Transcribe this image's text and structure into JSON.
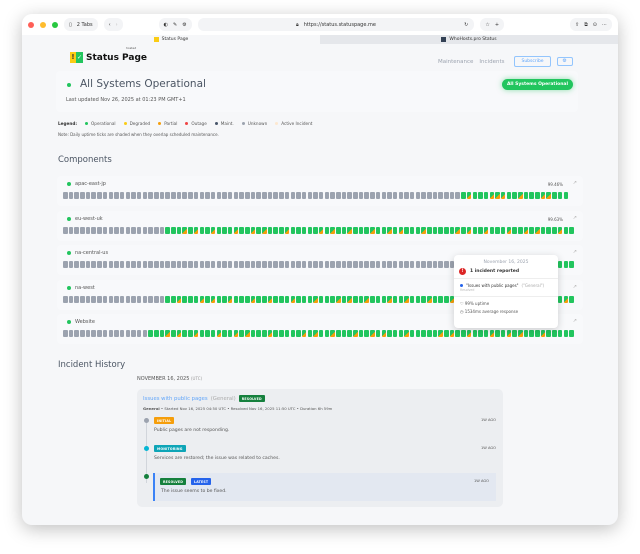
{
  "browser": {
    "tab_count": "2 Tabs",
    "url": "https://status.statuspage.me",
    "tabs": [
      {
        "label": "Status Page"
      },
      {
        "label": "WhoHosts.pro Status"
      }
    ]
  },
  "header": {
    "logo_text": "Status Page",
    "logo_sup": "hosted",
    "nav": [
      "Maintenance",
      "Incidents"
    ],
    "subscribe": "Subscribe",
    "gear": "⚙"
  },
  "summary": {
    "title": "All Systems Operational",
    "updated": "Last updated Nov 26, 2025 at 01:23 PM GMT+1",
    "badge": "All Systems Operational"
  },
  "legend": {
    "label": "Legend:",
    "items": [
      {
        "label": "Operational",
        "color": "#22c55e"
      },
      {
        "label": "Degraded",
        "color": "#facc15"
      },
      {
        "label": "Partial",
        "color": "#f59e0b"
      },
      {
        "label": "Outage",
        "color": "#ef4444"
      },
      {
        "label": "Maint.",
        "color": "#475569"
      },
      {
        "label": "Unknown",
        "color": "#9ca3af"
      },
      {
        "label": "Active Incident",
        "color": "#fde8d0"
      }
    ],
    "note": "Note: Daily uptime ticks are shaded when they overlap scheduled maintenance."
  },
  "components": {
    "title": "Components",
    "items": [
      {
        "name": "apac-east-jp",
        "uptime": "99.46%",
        "ticks": "uuuuuuuuuuuuuuuuuuuuuuuuuuuuuuuuuuuuuuuuuuuuuuuuuuuuuuuuuuuuuuuuuuuuuugpgggpppggpgggppggg"
      },
      {
        "name": "eu-west-uk",
        "uptime": "99.63%",
        "ticks": "uuuuuuuuuuuuuuuuuugggpgpggpgggpggpgpgggpgggggpgpggpgggpggpgpgggpgggggpgpggpgggpggpgpgggpgg"
      },
      {
        "name": "na-central-us",
        "uptime": "",
        "ticks": "uuuuuuuuuuuuuuuuuuuuuuuuuuuuuuuuuuuuuuuuuuuuuuuuuuuuuuuuuuuuuuuuuuuuuuuuuuuuuuuuuuuuuuuggg"
      },
      {
        "name": "na-west",
        "uptime": "",
        "ticks": "uuuuuuuuuuuuuuuuuuggpgggpgpggpgggpggpgggpgggpgggpgpggpgggpggpgggpgggpgggpgpggpgggpggpgggpg"
      },
      {
        "name": "Website",
        "uptime": "",
        "ticks": "uuuuuuuuuuuuuuugggpgpggpgggpggpgpgggpgggggpgpggpgggpggpgpgggpgggggpgpggpgggpggpgpgggpggggg"
      }
    ]
  },
  "tooltip": {
    "date": "November 16, 2025",
    "incidents": "1 incident reported",
    "incident_title": "\"Issues with public pages\"",
    "incident_group": "(\"General\")",
    "incident_status": "Resolved",
    "uptime": "99% uptime",
    "response": "1534ms average response"
  },
  "history": {
    "title": "Incident History",
    "date": "NOVEMBER 16, 2025",
    "tz": "(UTC)",
    "incident": {
      "title": "Issues with public pages",
      "group": "(General)",
      "badge": "RESOLVED",
      "meta_group": "General",
      "meta": " • Started Nov 16, 2025 04:50 UTC • Resolved Nov 16, 2025 11:50 UTC • Duration 6h 59m",
      "updates": [
        {
          "badge": "INITIAL",
          "text": "Public pages are not responding.",
          "ago": "1W AGO"
        },
        {
          "badge": "MONITORING",
          "text": "Services are restored; the issue was related to caches.",
          "ago": "1W AGO"
        },
        {
          "badge": "RESOLVED",
          "badge2": "LATEST",
          "text": "The issue seems to be fixed.",
          "ago": "1W AGO"
        }
      ]
    }
  }
}
